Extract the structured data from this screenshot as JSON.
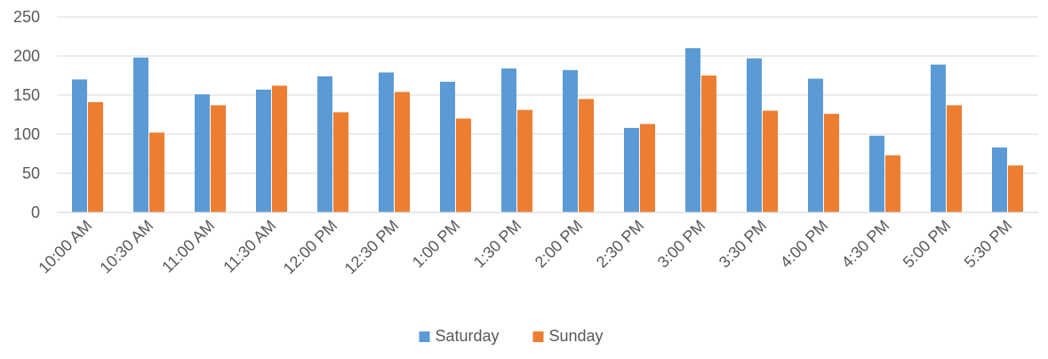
{
  "chart_data": {
    "type": "bar",
    "title": "",
    "xlabel": "",
    "ylabel": "",
    "ylim": [
      0,
      250
    ],
    "yticks": [
      0,
      50,
      100,
      150,
      200,
      250
    ],
    "grid": true,
    "legend_position": "bottom",
    "categories": [
      "10:00 AM",
      "10:30 AM",
      "11:00 AM",
      "11:30 AM",
      "12:00 PM",
      "12:30 PM",
      "1:00 PM",
      "1:30 PM",
      "2:00 PM",
      "2:30 PM",
      "3:00 PM",
      "3:30 PM",
      "4:00 PM",
      "4:30 PM",
      "5:00 PM",
      "5:30 PM"
    ],
    "series": [
      {
        "name": "Saturday",
        "color": "#5B9BD5",
        "values": [
          170,
          198,
          151,
          157,
          174,
          179,
          167,
          184,
          182,
          108,
          210,
          197,
          171,
          98,
          189,
          83
        ]
      },
      {
        "name": "Sunday",
        "color": "#ED7D31",
        "values": [
          141,
          102,
          137,
          162,
          128,
          154,
          120,
          131,
          145,
          113,
          175,
          130,
          126,
          73,
          137,
          60
        ]
      }
    ]
  }
}
